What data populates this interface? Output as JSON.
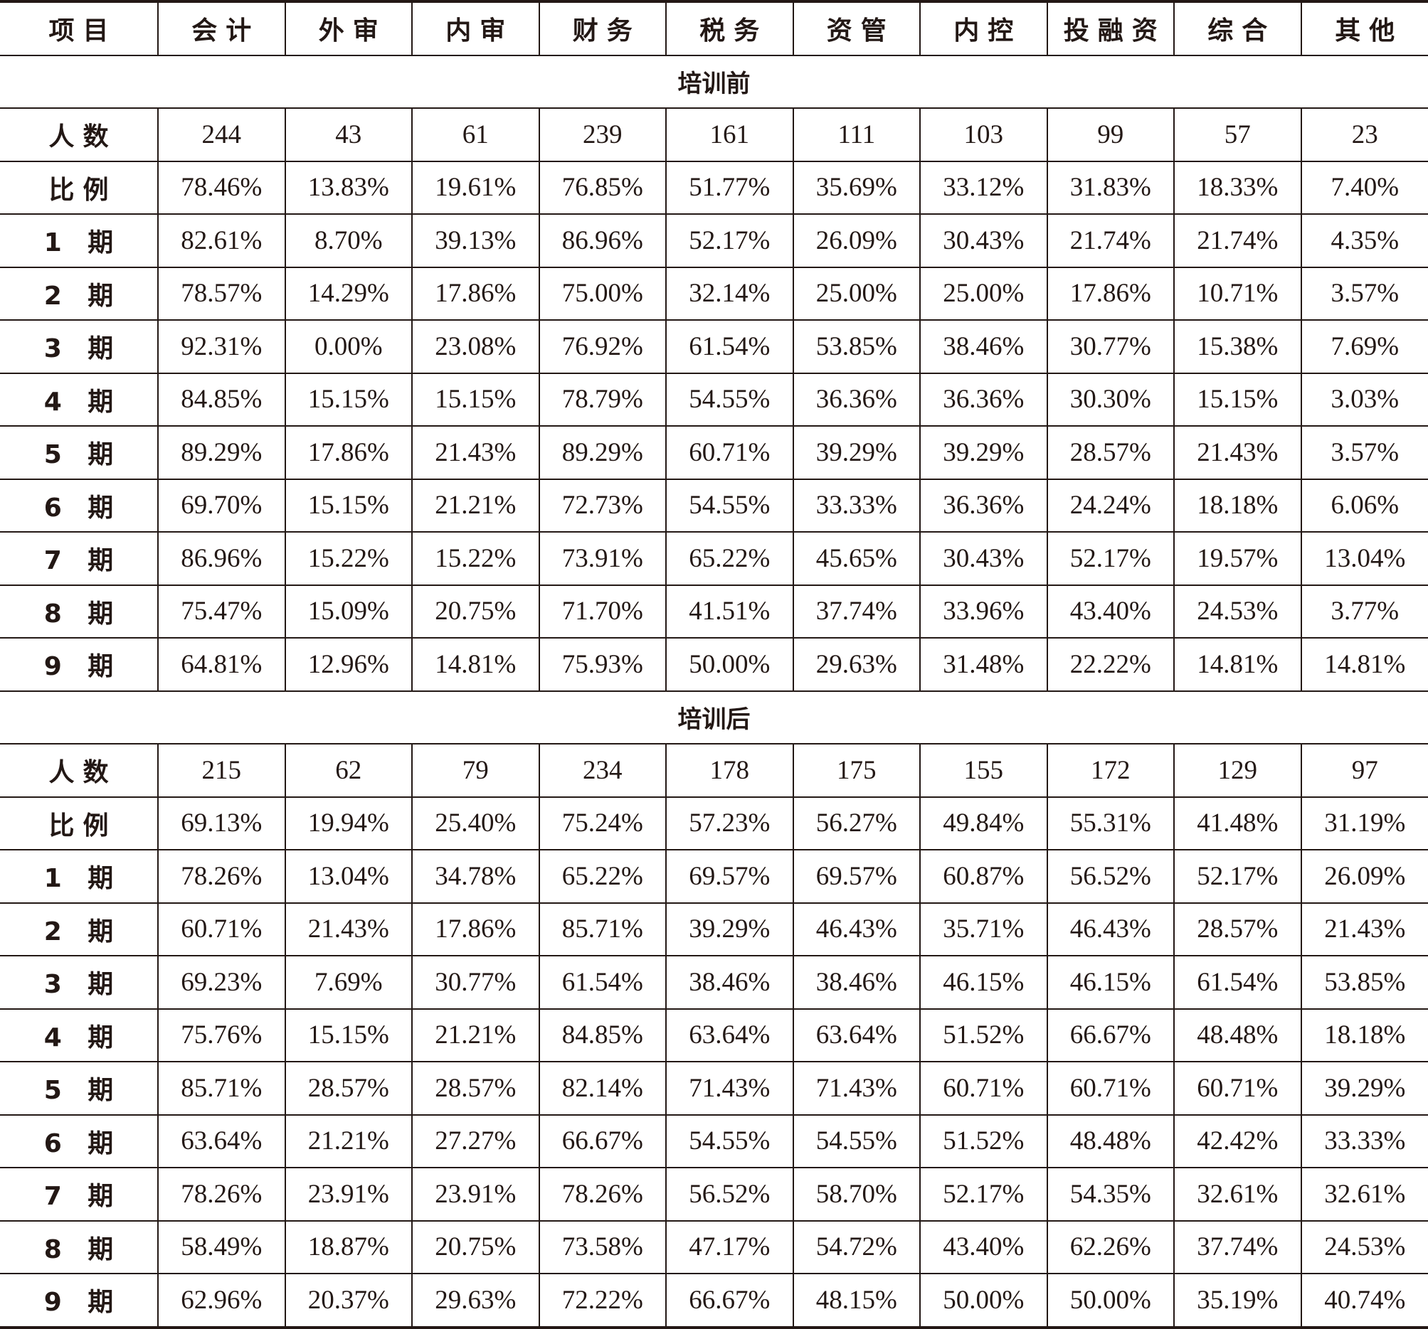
{
  "table": {
    "headers": [
      "项目",
      "会计",
      "外审",
      "内审",
      "财务",
      "税务",
      "资管",
      "内控",
      "投融资",
      "综合",
      "其他"
    ],
    "sections": [
      {
        "title": "培训前",
        "rows": [
          {
            "label": "人数",
            "values": [
              "244",
              "43",
              "61",
              "239",
              "161",
              "111",
              "103",
              "99",
              "57",
              "23"
            ]
          },
          {
            "label": "比例",
            "values": [
              "78.46%",
              "13.83%",
              "19.61%",
              "76.85%",
              "51.77%",
              "35.69%",
              "33.12%",
              "31.83%",
              "18.33%",
              "7.40%"
            ]
          },
          {
            "label": "1 期",
            "values": [
              "82.61%",
              "8.70%",
              "39.13%",
              "86.96%",
              "52.17%",
              "26.09%",
              "30.43%",
              "21.74%",
              "21.74%",
              "4.35%"
            ]
          },
          {
            "label": "2 期",
            "values": [
              "78.57%",
              "14.29%",
              "17.86%",
              "75.00%",
              "32.14%",
              "25.00%",
              "25.00%",
              "17.86%",
              "10.71%",
              "3.57%"
            ]
          },
          {
            "label": "3 期",
            "values": [
              "92.31%",
              "0.00%",
              "23.08%",
              "76.92%",
              "61.54%",
              "53.85%",
              "38.46%",
              "30.77%",
              "15.38%",
              "7.69%"
            ]
          },
          {
            "label": "4 期",
            "values": [
              "84.85%",
              "15.15%",
              "15.15%",
              "78.79%",
              "54.55%",
              "36.36%",
              "36.36%",
              "30.30%",
              "15.15%",
              "3.03%"
            ]
          },
          {
            "label": "5 期",
            "values": [
              "89.29%",
              "17.86%",
              "21.43%",
              "89.29%",
              "60.71%",
              "39.29%",
              "39.29%",
              "28.57%",
              "21.43%",
              "3.57%"
            ]
          },
          {
            "label": "6 期",
            "values": [
              "69.70%",
              "15.15%",
              "21.21%",
              "72.73%",
              "54.55%",
              "33.33%",
              "36.36%",
              "24.24%",
              "18.18%",
              "6.06%"
            ]
          },
          {
            "label": "7 期",
            "values": [
              "86.96%",
              "15.22%",
              "15.22%",
              "73.91%",
              "65.22%",
              "45.65%",
              "30.43%",
              "52.17%",
              "19.57%",
              "13.04%"
            ]
          },
          {
            "label": "8 期",
            "values": [
              "75.47%",
              "15.09%",
              "20.75%",
              "71.70%",
              "41.51%",
              "37.74%",
              "33.96%",
              "43.40%",
              "24.53%",
              "3.77%"
            ]
          },
          {
            "label": "9 期",
            "values": [
              "64.81%",
              "12.96%",
              "14.81%",
              "75.93%",
              "50.00%",
              "29.63%",
              "31.48%",
              "22.22%",
              "14.81%",
              "14.81%"
            ]
          }
        ]
      },
      {
        "title": "培训后",
        "rows": [
          {
            "label": "人数",
            "values": [
              "215",
              "62",
              "79",
              "234",
              "178",
              "175",
              "155",
              "172",
              "129",
              "97"
            ]
          },
          {
            "label": "比例",
            "values": [
              "69.13%",
              "19.94%",
              "25.40%",
              "75.24%",
              "57.23%",
              "56.27%",
              "49.84%",
              "55.31%",
              "41.48%",
              "31.19%"
            ]
          },
          {
            "label": "1 期",
            "values": [
              "78.26%",
              "13.04%",
              "34.78%",
              "65.22%",
              "69.57%",
              "69.57%",
              "60.87%",
              "56.52%",
              "52.17%",
              "26.09%"
            ]
          },
          {
            "label": "2 期",
            "values": [
              "60.71%",
              "21.43%",
              "17.86%",
              "85.71%",
              "39.29%",
              "46.43%",
              "35.71%",
              "46.43%",
              "28.57%",
              "21.43%"
            ]
          },
          {
            "label": "3 期",
            "values": [
              "69.23%",
              "7.69%",
              "30.77%",
              "61.54%",
              "38.46%",
              "38.46%",
              "46.15%",
              "46.15%",
              "61.54%",
              "53.85%"
            ]
          },
          {
            "label": "4 期",
            "values": [
              "75.76%",
              "15.15%",
              "21.21%",
              "84.85%",
              "63.64%",
              "63.64%",
              "51.52%",
              "66.67%",
              "48.48%",
              "18.18%"
            ]
          },
          {
            "label": "5 期",
            "values": [
              "85.71%",
              "28.57%",
              "28.57%",
              "82.14%",
              "71.43%",
              "71.43%",
              "60.71%",
              "60.71%",
              "60.71%",
              "39.29%"
            ]
          },
          {
            "label": "6 期",
            "values": [
              "63.64%",
              "21.21%",
              "27.27%",
              "66.67%",
              "54.55%",
              "54.55%",
              "51.52%",
              "48.48%",
              "42.42%",
              "33.33%"
            ]
          },
          {
            "label": "7 期",
            "values": [
              "78.26%",
              "23.91%",
              "23.91%",
              "78.26%",
              "56.52%",
              "58.70%",
              "52.17%",
              "54.35%",
              "32.61%",
              "32.61%"
            ]
          },
          {
            "label": "8 期",
            "values": [
              "58.49%",
              "18.87%",
              "20.75%",
              "73.58%",
              "47.17%",
              "54.72%",
              "43.40%",
              "62.26%",
              "37.74%",
              "24.53%"
            ]
          },
          {
            "label": "9 期",
            "values": [
              "62.96%",
              "20.37%",
              "29.63%",
              "72.22%",
              "66.67%",
              "48.15%",
              "50.00%",
              "50.00%",
              "35.19%",
              "40.74%"
            ]
          }
        ]
      }
    ]
  },
  "colors": {
    "ink": "#231815",
    "background": "#ffffff"
  }
}
